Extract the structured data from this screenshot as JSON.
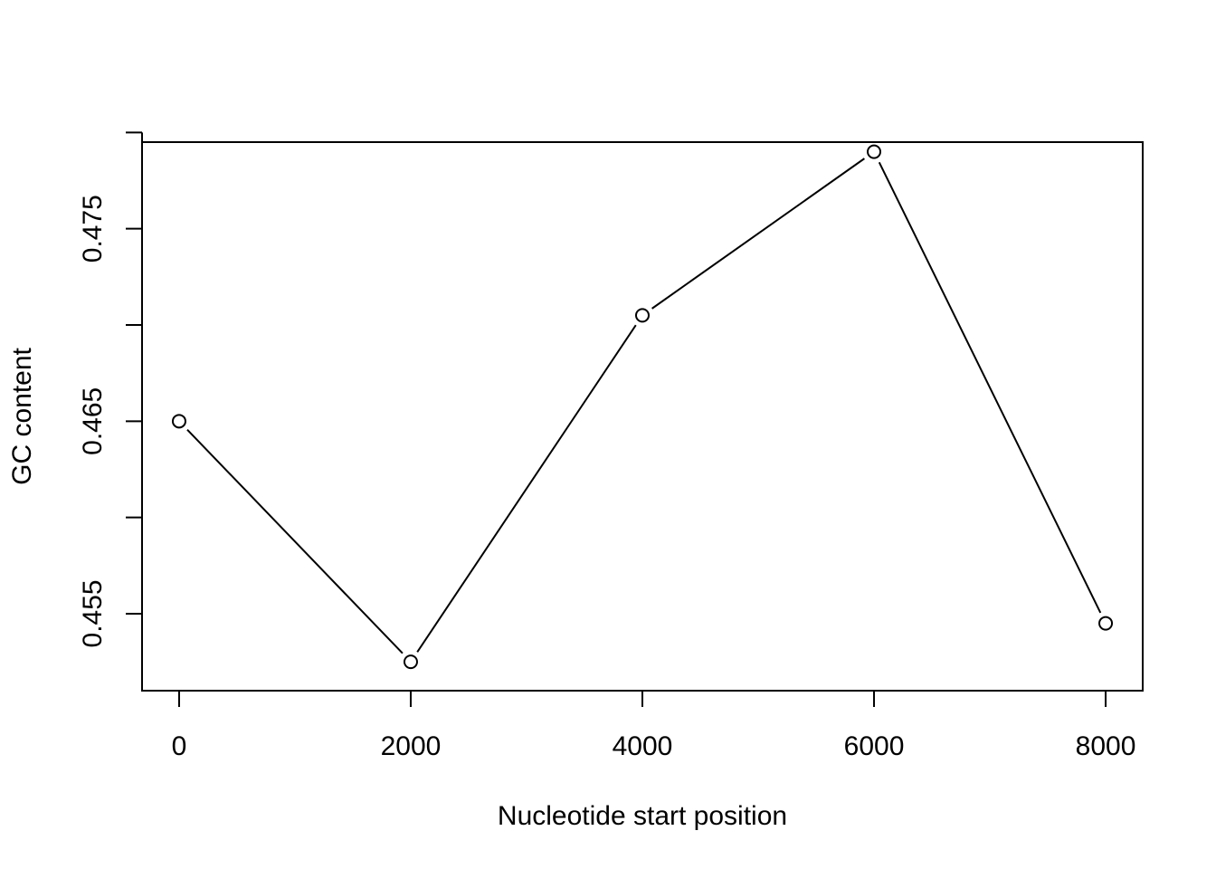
{
  "chart_data": {
    "type": "line",
    "title": "",
    "xlabel": "Nucleotide start position",
    "ylabel": "GC content",
    "x": [
      0,
      2000,
      4000,
      6000,
      8000
    ],
    "series": [
      {
        "values": [
          0.465,
          0.4525,
          0.4705,
          0.479,
          0.4545
        ]
      }
    ],
    "xlim": [
      -320,
      8320
    ],
    "ylim": [
      0.451,
      0.4795
    ],
    "x_ticks": [
      0,
      2000,
      4000,
      6000,
      8000
    ],
    "x_tick_labels": [
      "0",
      "2000",
      "4000",
      "6000",
      "8000"
    ],
    "y_ticks": [
      0.455,
      0.46,
      0.465,
      0.47,
      0.475,
      0.48
    ],
    "y_tick_labels": [
      "0.455",
      "",
      "0.465",
      "",
      "0.475",
      ""
    ],
    "markers": "open-circle",
    "grid": false,
    "legend": "none",
    "colors": {
      "line": "#000000",
      "marker_fill": "#ffffff",
      "axis": "#000000"
    }
  }
}
